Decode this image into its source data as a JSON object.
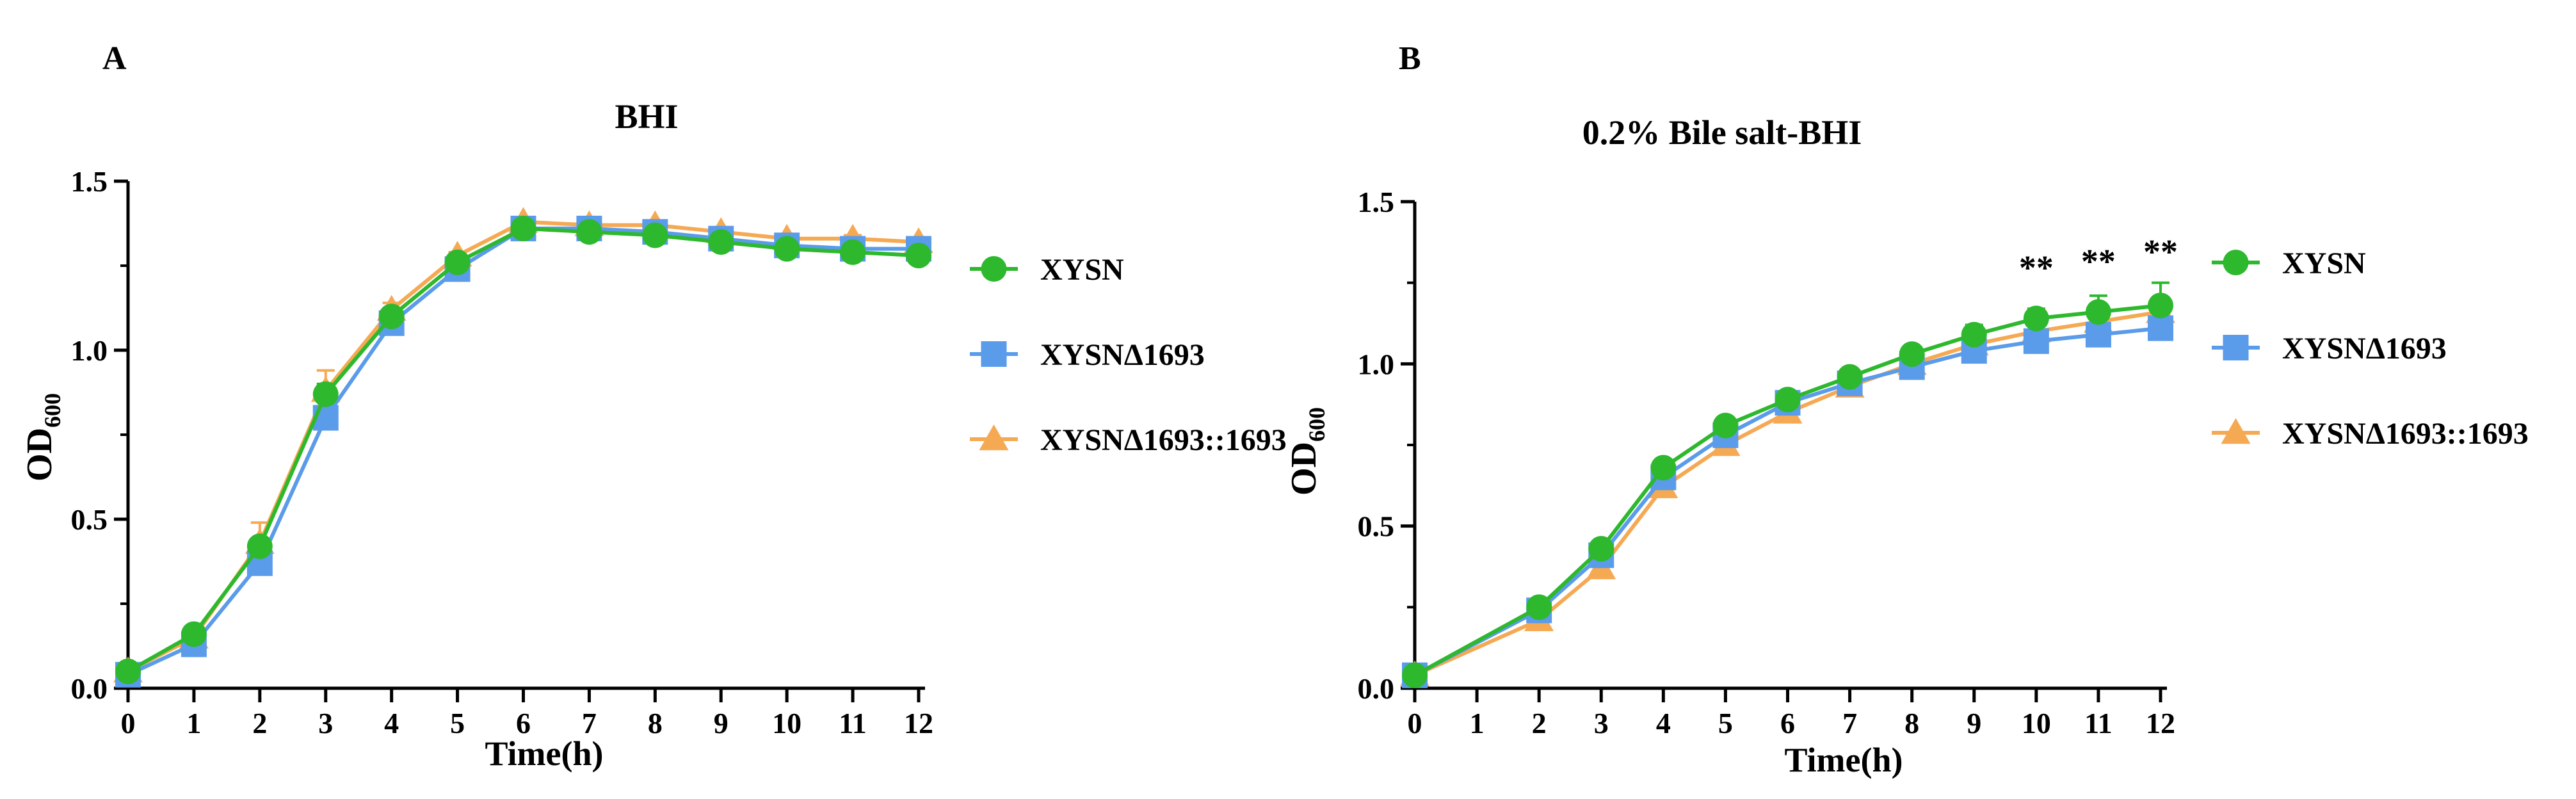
{
  "chart_data": [
    {
      "panel_label": "A",
      "type": "line",
      "title": "BHI",
      "xlabel": "Time(h)",
      "ylabel_main": "OD",
      "ylabel_sub": "600",
      "xlim": [
        0,
        12
      ],
      "ylim": [
        0,
        1.5
      ],
      "xticks": [
        0,
        1,
        2,
        3,
        4,
        5,
        6,
        7,
        8,
        9,
        10,
        11,
        12
      ],
      "yticks": [
        0.0,
        0.5,
        1.0,
        1.5
      ],
      "ytick_labels": [
        "0.0",
        "0.5",
        "1.0",
        "1.5"
      ],
      "legend_position": "right",
      "series": [
        {
          "name": "XYSN",
          "color": "#2db82d",
          "marker": "circle",
          "x": [
            0,
            1,
            2,
            3,
            4,
            5,
            6,
            7,
            8,
            9,
            10,
            11,
            12
          ],
          "y": [
            0.05,
            0.16,
            0.42,
            0.87,
            1.1,
            1.26,
            1.36,
            1.35,
            1.34,
            1.32,
            1.3,
            1.29,
            1.28
          ],
          "err": [
            0.01,
            0.01,
            0.02,
            0.03,
            0.01,
            0.01,
            0.01,
            0.01,
            0.01,
            0.01,
            0.01,
            0.01,
            0.01
          ]
        },
        {
          "name": "XYSNΔ1693",
          "color": "#5a9bea",
          "marker": "square",
          "x": [
            0,
            1,
            2,
            3,
            4,
            5,
            6,
            7,
            8,
            9,
            10,
            11,
            12
          ],
          "y": [
            0.04,
            0.13,
            0.37,
            0.8,
            1.08,
            1.24,
            1.36,
            1.36,
            1.35,
            1.33,
            1.31,
            1.3,
            1.3
          ],
          "err": [
            0.01,
            0.01,
            0.02,
            0.03,
            0.01,
            0.01,
            0.01,
            0.01,
            0.01,
            0.01,
            0.01,
            0.01,
            0.01
          ]
        },
        {
          "name": "XYSNΔ1693::1693",
          "color": "#f5a953",
          "marker": "triangle",
          "x": [
            0,
            1,
            2,
            3,
            4,
            5,
            6,
            7,
            8,
            9,
            10,
            11,
            12
          ],
          "y": [
            0.05,
            0.15,
            0.43,
            0.88,
            1.12,
            1.28,
            1.38,
            1.37,
            1.37,
            1.35,
            1.33,
            1.33,
            1.32
          ],
          "err": [
            0.01,
            0.01,
            0.06,
            0.06,
            0.02,
            0.01,
            0.01,
            0.01,
            0.01,
            0.01,
            0.01,
            0.01,
            0.01
          ]
        }
      ],
      "annotations": []
    },
    {
      "panel_label": "B",
      "type": "line",
      "title": "0.2% Bile salt-BHI",
      "xlabel": "Time(h)",
      "ylabel_main": "OD",
      "ylabel_sub": "600",
      "xlim": [
        0,
        12
      ],
      "ylim": [
        0,
        1.5
      ],
      "xticks": [
        0,
        1,
        2,
        3,
        4,
        5,
        6,
        7,
        8,
        9,
        10,
        11,
        12
      ],
      "yticks": [
        0.0,
        0.5,
        1.0,
        1.5
      ],
      "ytick_labels": [
        "0.0",
        "0.5",
        "1.0",
        "1.5"
      ],
      "legend_position": "right",
      "series": [
        {
          "name": "XYSN",
          "color": "#2db82d",
          "marker": "circle",
          "x": [
            0,
            2,
            3,
            4,
            5,
            6,
            7,
            8,
            9,
            10,
            11,
            12
          ],
          "y": [
            0.04,
            0.25,
            0.43,
            0.68,
            0.81,
            0.89,
            0.96,
            1.03,
            1.09,
            1.14,
            1.16,
            1.18
          ],
          "err": [
            0.01,
            0.01,
            0.01,
            0.02,
            0.02,
            0.01,
            0.01,
            0.01,
            0.03,
            0.03,
            0.05,
            0.07
          ]
        },
        {
          "name": "XYSNΔ1693",
          "color": "#5a9bea",
          "marker": "square",
          "x": [
            0,
            2,
            3,
            4,
            5,
            6,
            7,
            8,
            9,
            10,
            11,
            12
          ],
          "y": [
            0.04,
            0.24,
            0.41,
            0.65,
            0.78,
            0.88,
            0.94,
            0.99,
            1.04,
            1.07,
            1.09,
            1.11
          ],
          "err": [
            0.01,
            0.01,
            0.01,
            0.02,
            0.02,
            0.01,
            0.01,
            0.01,
            0.02,
            0.02,
            0.02,
            0.02
          ]
        },
        {
          "name": "XYSNΔ1693::1693",
          "color": "#f5a953",
          "marker": "triangle",
          "x": [
            0,
            2,
            3,
            4,
            5,
            6,
            7,
            8,
            9,
            10,
            11,
            12
          ],
          "y": [
            0.04,
            0.21,
            0.37,
            0.62,
            0.75,
            0.85,
            0.93,
            1.0,
            1.06,
            1.1,
            1.13,
            1.16
          ],
          "err": [
            0.01,
            0.02,
            0.02,
            0.03,
            0.03,
            0.02,
            0.02,
            0.02,
            0.02,
            0.02,
            0.02,
            0.02
          ]
        }
      ],
      "annotations": [
        {
          "text": "**",
          "x": 10,
          "y": 1.26
        },
        {
          "text": "**",
          "x": 11,
          "y": 1.28
        },
        {
          "text": "**",
          "x": 12,
          "y": 1.31
        }
      ]
    }
  ]
}
